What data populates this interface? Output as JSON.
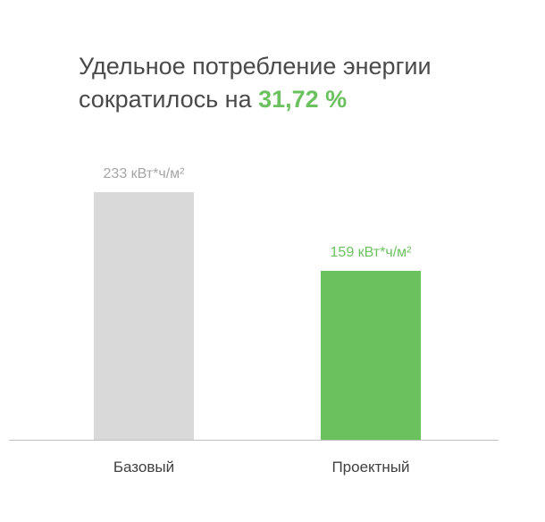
{
  "title": {
    "line1": "Удельное потребление энергии",
    "line2": "сократилось на",
    "highlight": "31,72 %"
  },
  "colors": {
    "base": "#d9d9d9",
    "project": "#6cc15f",
    "base_label": "#a6a6a6",
    "axis": "#bfbfbf",
    "category_text": "#404040"
  },
  "chart_data": {
    "type": "bar",
    "categories": [
      "Базовый",
      "Проектный"
    ],
    "values": [
      233,
      159
    ],
    "data_labels": [
      "233 кВт*ч/м²",
      "159 кВт*ч/м²"
    ],
    "unit": "кВт*ч/м²",
    "title": "Удельное потребление энергии сократилось на 31,72 %",
    "xlabel": "",
    "ylabel": "",
    "ylim": [
      0,
      233
    ],
    "grid": false,
    "legend": "none"
  }
}
